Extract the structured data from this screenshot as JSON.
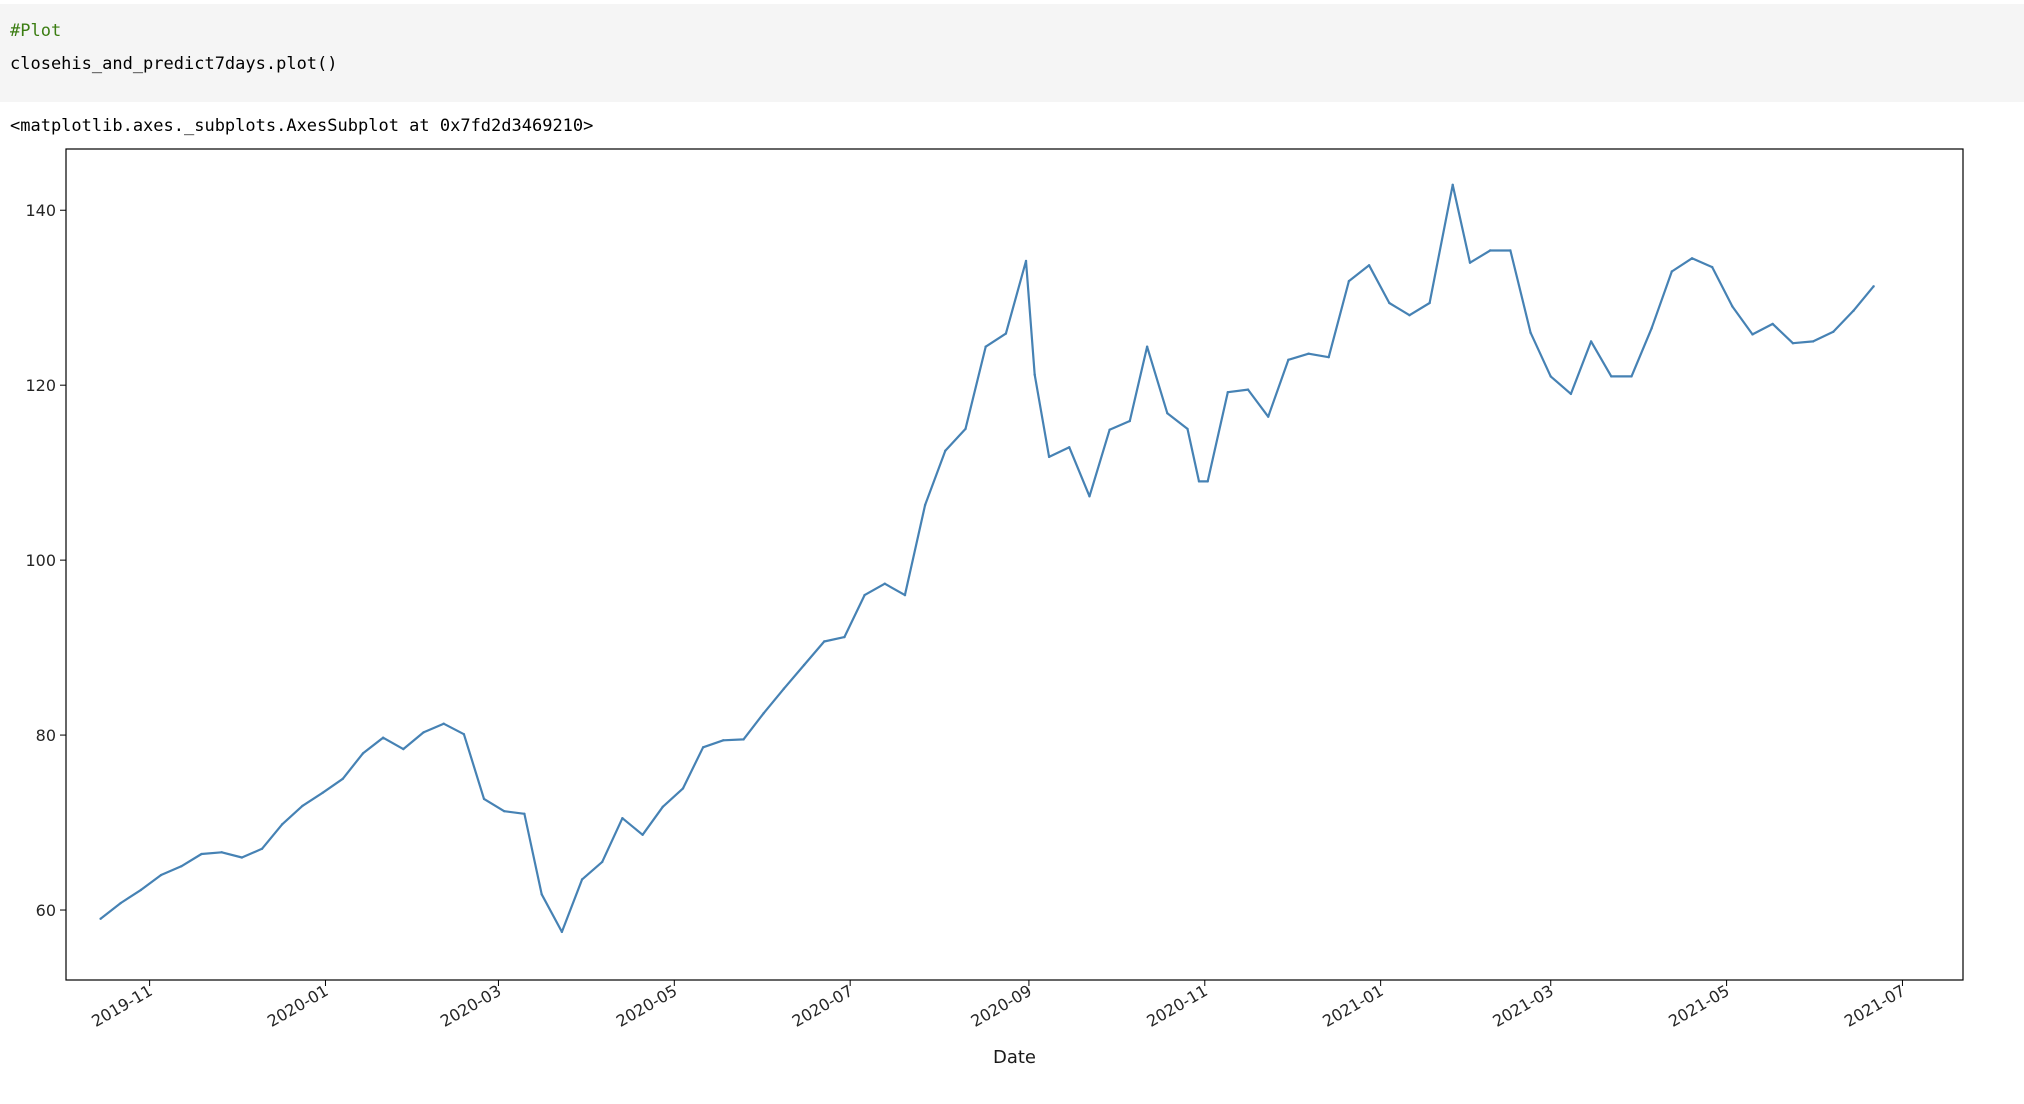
{
  "cell": {
    "comment": "#Plot",
    "statement": "closehis_and_predict7days.plot()"
  },
  "output": {
    "repr": "<matplotlib.axes._subplots.AxesSubplot at 0x7fd2d3469210>"
  },
  "chart_data": {
    "type": "line",
    "xlabel": "Date",
    "ylabel": "",
    "title": "",
    "grid": false,
    "xlim": [
      "2019-10-03",
      "2021-07-22"
    ],
    "ylim": [
      52.0,
      147.0
    ],
    "x_ticks": [
      "2019-11",
      "2020-01",
      "2020-03",
      "2020-05",
      "2020-07",
      "2020-09",
      "2020-11",
      "2021-01",
      "2021-03",
      "2021-05",
      "2021-07"
    ],
    "y_ticks": [
      60,
      80,
      100,
      120,
      140
    ],
    "line_color": "#4682b4",
    "series": [
      {
        "x": [
          "2019-10-15",
          "2019-10-22",
          "2019-10-29",
          "2019-11-05",
          "2019-11-12",
          "2019-11-19",
          "2019-11-26",
          "2019-12-03",
          "2019-12-10",
          "2019-12-17",
          "2019-12-24",
          "2019-12-31",
          "2020-01-07",
          "2020-01-14",
          "2020-01-21",
          "2020-01-28",
          "2020-02-04",
          "2020-02-11",
          "2020-02-18",
          "2020-02-25",
          "2020-03-03",
          "2020-03-10",
          "2020-03-16",
          "2020-03-23",
          "2020-03-30",
          "2020-04-06",
          "2020-04-13",
          "2020-04-20",
          "2020-04-27",
          "2020-05-04",
          "2020-05-11",
          "2020-05-18",
          "2020-05-25",
          "2020-06-01",
          "2020-06-08",
          "2020-06-15",
          "2020-06-22",
          "2020-06-29",
          "2020-07-06",
          "2020-07-13",
          "2020-07-20",
          "2020-07-27",
          "2020-08-03",
          "2020-08-10",
          "2020-08-17",
          "2020-08-24",
          "2020-08-31",
          "2020-09-03",
          "2020-09-08",
          "2020-09-15",
          "2020-09-22",
          "2020-09-29",
          "2020-10-06",
          "2020-10-12",
          "2020-10-19",
          "2020-10-26",
          "2020-10-30",
          "2020-11-02",
          "2020-11-09",
          "2020-11-16",
          "2020-11-23",
          "2020-11-30",
          "2020-12-07",
          "2020-12-14",
          "2020-12-21",
          "2020-12-28",
          "2021-01-04",
          "2021-01-11",
          "2021-01-18",
          "2021-01-26",
          "2021-02-01",
          "2021-02-08",
          "2021-02-15",
          "2021-02-22",
          "2021-03-01",
          "2021-03-08",
          "2021-03-15",
          "2021-03-22",
          "2021-03-29",
          "2021-04-05",
          "2021-04-12",
          "2021-04-19",
          "2021-04-26",
          "2021-05-03",
          "2021-05-10",
          "2021-05-17",
          "2021-05-24",
          "2021-05-31",
          "2021-06-07",
          "2021-06-14",
          "2021-06-21"
        ],
        "values": [
          59.0,
          60.8,
          62.3,
          64.0,
          65.0,
          66.4,
          66.6,
          66.0,
          67.0,
          69.8,
          71.9,
          73.4,
          75.0,
          77.9,
          79.7,
          78.4,
          80.3,
          81.3,
          80.1,
          72.7,
          71.3,
          71.0,
          61.8,
          57.5,
          63.5,
          65.5,
          70.5,
          68.6,
          71.8,
          73.9,
          78.6,
          79.4,
          79.5,
          82.5,
          85.3,
          88.0,
          90.7,
          91.2,
          96.0,
          97.3,
          96.0,
          106.3,
          112.5,
          115.0,
          124.4,
          125.9,
          134.2,
          121.2,
          111.8,
          112.9,
          107.3,
          114.9,
          115.9,
          124.4,
          116.8,
          115.0,
          109.0,
          109.0,
          119.2,
          119.5,
          116.4,
          122.9,
          123.6,
          123.2,
          131.9,
          133.7,
          129.4,
          128.0,
          129.4,
          142.9,
          134.0,
          135.4,
          135.4,
          126.0,
          121.0,
          119.0,
          125.0,
          121.0,
          121.0,
          126.5,
          133.0,
          134.5,
          133.5,
          129.0,
          125.8,
          127.0,
          124.8,
          125.0,
          126.1,
          128.5,
          131.3
        ]
      }
    ]
  }
}
